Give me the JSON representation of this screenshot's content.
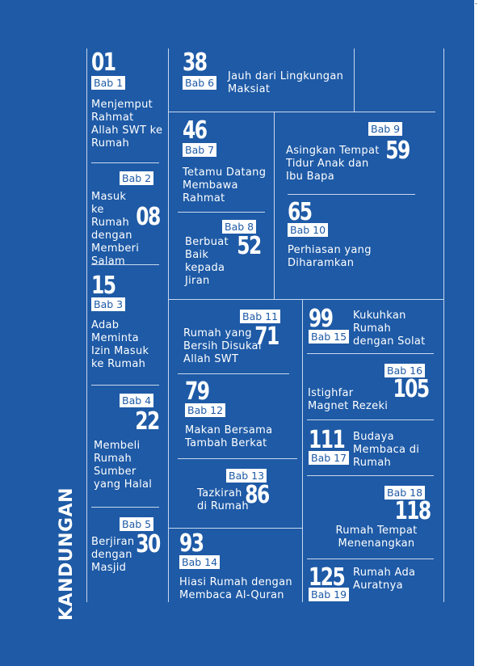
{
  "sidebar_title": "KANDUNGAN",
  "corner_mark": "-",
  "colors": {
    "background": "#1e5aa6",
    "text": "#ffffff",
    "badge_text": "#1e5aa6",
    "lines": "#c9d8ee"
  },
  "chapters": [
    {
      "page": "01",
      "bab": "Bab 1",
      "title": "Menjemput Rahmat Allah SWT ke Rumah"
    },
    {
      "page": "08",
      "bab": "Bab 2",
      "title": "Masuk ke Rumah dengan Memberi Salam"
    },
    {
      "page": "15",
      "bab": "Bab 3",
      "title": "Adab Meminta Izin Masuk ke Rumah"
    },
    {
      "page": "22",
      "bab": "Bab 4",
      "title": "Membeli Rumah Sumber yang Halal"
    },
    {
      "page": "30",
      "bab": "Bab 5",
      "title": "Berjiran dengan Masjid"
    },
    {
      "page": "38",
      "bab": "Bab 6",
      "title": "Jauh dari Lingkungan Maksiat"
    },
    {
      "page": "46",
      "bab": "Bab 7",
      "title": "Tetamu Datang Membawa Rahmat"
    },
    {
      "page": "52",
      "bab": "Bab 8",
      "title": "Berbuat Baik kepada Jiran"
    },
    {
      "page": "59",
      "bab": "Bab 9",
      "title": "Asingkan Tempat Tidur Anak dan Ibu Bapa"
    },
    {
      "page": "65",
      "bab": "Bab 10",
      "title": "Perhiasan yang Diharamkan"
    },
    {
      "page": "71",
      "bab": "Bab 11",
      "title": "Rumah yang Bersih Disukai Allah SWT"
    },
    {
      "page": "79",
      "bab": "Bab 12",
      "title": "Makan Bersama Tambah Berkat"
    },
    {
      "page": "86",
      "bab": "Bab 13",
      "title": "Tazkirah di Rumah"
    },
    {
      "page": "93",
      "bab": "Bab 14",
      "title": "Hiasi Rumah dengan Membaca Al-Quran"
    },
    {
      "page": "99",
      "bab": "Bab 15",
      "title": "Kukuhkan Rumah dengan Solat"
    },
    {
      "page": "105",
      "bab": "Bab 16",
      "title": "Istighfar Magnet Rezeki"
    },
    {
      "page": "111",
      "bab": "Bab 17",
      "title": "Budaya Membaca di Rumah"
    },
    {
      "page": "118",
      "bab": "Bab 18",
      "title": "Rumah Tempat Menenangkan"
    },
    {
      "page": "125",
      "bab": "Bab 19",
      "title": "Rumah Ada Auratnya"
    }
  ]
}
